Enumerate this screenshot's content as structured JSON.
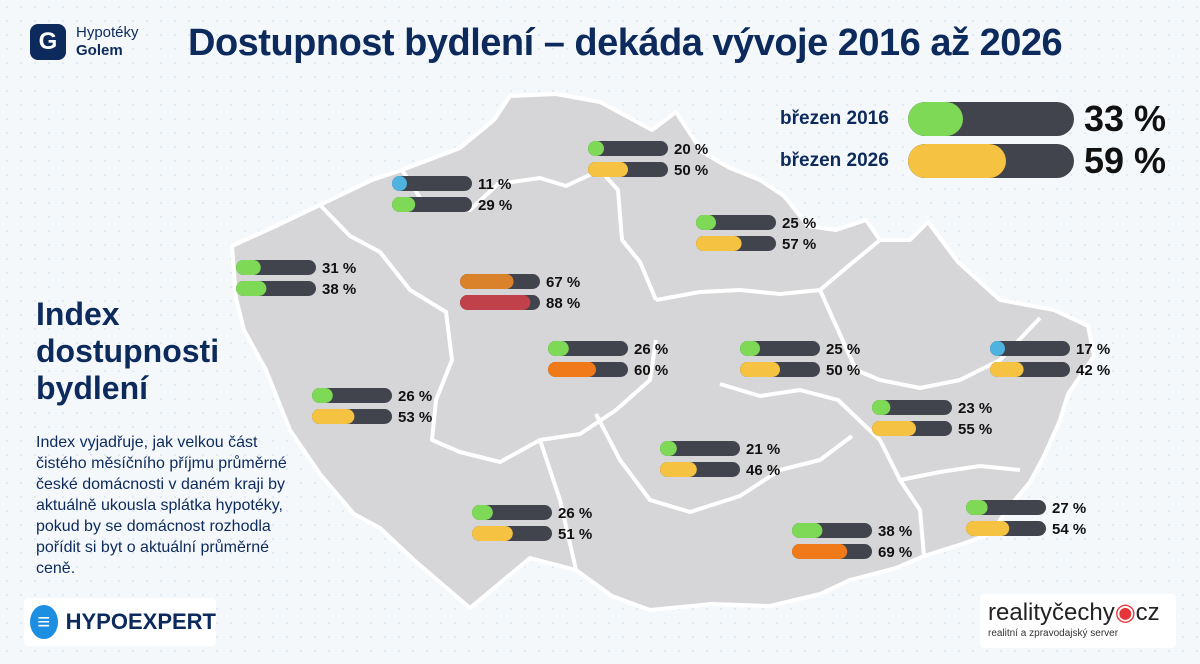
{
  "brand": {
    "logo_letter": "G",
    "name_line1": "Hypotéky",
    "name_line2": "Golem"
  },
  "title": "Dostupnost bydlení – dekáda vývoje 2016 až 2026",
  "legend": {
    "items": [
      {
        "label": "březen 2016",
        "value_text": "33 %",
        "value": 33,
        "color": "#7ed957"
      },
      {
        "label": "březen 2026",
        "value_text": "59 %",
        "value": 59,
        "color": "#f5c242"
      }
    ]
  },
  "index": {
    "title": "Index dostupnosti bydlení",
    "description": "Index vyjadřuje, jak velkou část čistého měsíčního příjmu průměrné české domácnosti v daném kraji by aktuálně ukousla splátka hypotéky, pokud by se domácnost rozhodla pořídit si byt o aktuální průměrné ceně."
  },
  "sponsors": {
    "hypoexpert_icon": "≡",
    "hypoexpert": "HYPOEXPERT",
    "reality_main": "realityčechy",
    "reality_suffix": "cz",
    "reality_tagline": "realitní a zpravodajský server"
  },
  "colors": {
    "bar_track": "#41434d",
    "green": "#7ed957",
    "yellow": "#f5c242",
    "blue": "#4fb3e0",
    "orange": "#f07a1a",
    "dark_orange": "#d9822b",
    "red": "#c0414a",
    "map_fill": "#d6d6d8",
    "map_border": "#ffffff"
  },
  "chart_data": {
    "type": "bar",
    "title": "Index dostupnosti bydlení",
    "unit": "%",
    "series": [
      {
        "name": "březen 2016",
        "values": [
          20,
          11,
          25,
          31,
          67,
          26,
          25,
          17,
          26,
          23,
          21,
          26,
          27,
          38
        ]
      },
      {
        "name": "březen 2026",
        "values": [
          50,
          29,
          57,
          38,
          88,
          60,
          50,
          42,
          53,
          55,
          46,
          51,
          54,
          69
        ]
      }
    ],
    "regions": [
      {
        "v2016": 20,
        "c2016": "green",
        "v2026": 50,
        "c2026": "yellow",
        "label2016": "20 %",
        "label2026": "50 %"
      },
      {
        "v2016": 11,
        "c2016": "blue",
        "v2026": 29,
        "c2026": "green",
        "label2016": "11 %",
        "label2026": "29 %"
      },
      {
        "v2016": 25,
        "c2016": "green",
        "v2026": 57,
        "c2026": "yellow",
        "label2016": "25 %",
        "label2026": "57 %"
      },
      {
        "v2016": 31,
        "c2016": "green",
        "v2026": 38,
        "c2026": "green",
        "label2016": "31 %",
        "label2026": "38 %"
      },
      {
        "v2016": 67,
        "c2016": "dark_orange",
        "v2026": 88,
        "c2026": "red",
        "label2016": "67 %",
        "label2026": "88 %"
      },
      {
        "v2016": 26,
        "c2016": "green",
        "v2026": 60,
        "c2026": "orange",
        "label2016": "26 %",
        "label2026": "60 %"
      },
      {
        "v2016": 25,
        "c2016": "green",
        "v2026": 50,
        "c2026": "yellow",
        "label2016": "25 %",
        "label2026": "50 %"
      },
      {
        "v2016": 17,
        "c2016": "blue",
        "v2026": 42,
        "c2026": "yellow",
        "label2016": "17 %",
        "label2026": "42 %"
      },
      {
        "v2016": 26,
        "c2016": "green",
        "v2026": 53,
        "c2026": "yellow",
        "label2016": "26 %",
        "label2026": "53 %"
      },
      {
        "v2016": 23,
        "c2016": "green",
        "v2026": 55,
        "c2026": "yellow",
        "label2016": "23 %",
        "label2026": "55 %"
      },
      {
        "v2016": 21,
        "c2016": "green",
        "v2026": 46,
        "c2026": "yellow",
        "label2016": "21 %",
        "label2026": "46 %"
      },
      {
        "v2016": 26,
        "c2016": "green",
        "v2026": 51,
        "c2026": "yellow",
        "label2016": "26 %",
        "label2026": "51 %"
      },
      {
        "v2016": 27,
        "c2016": "green",
        "v2026": 54,
        "c2026": "yellow",
        "label2016": "27 %",
        "label2026": "54 %"
      },
      {
        "v2016": 38,
        "c2016": "green",
        "v2026": 69,
        "c2026": "orange",
        "label2016": "38 %",
        "label2026": "69 %"
      }
    ],
    "max": 100
  }
}
